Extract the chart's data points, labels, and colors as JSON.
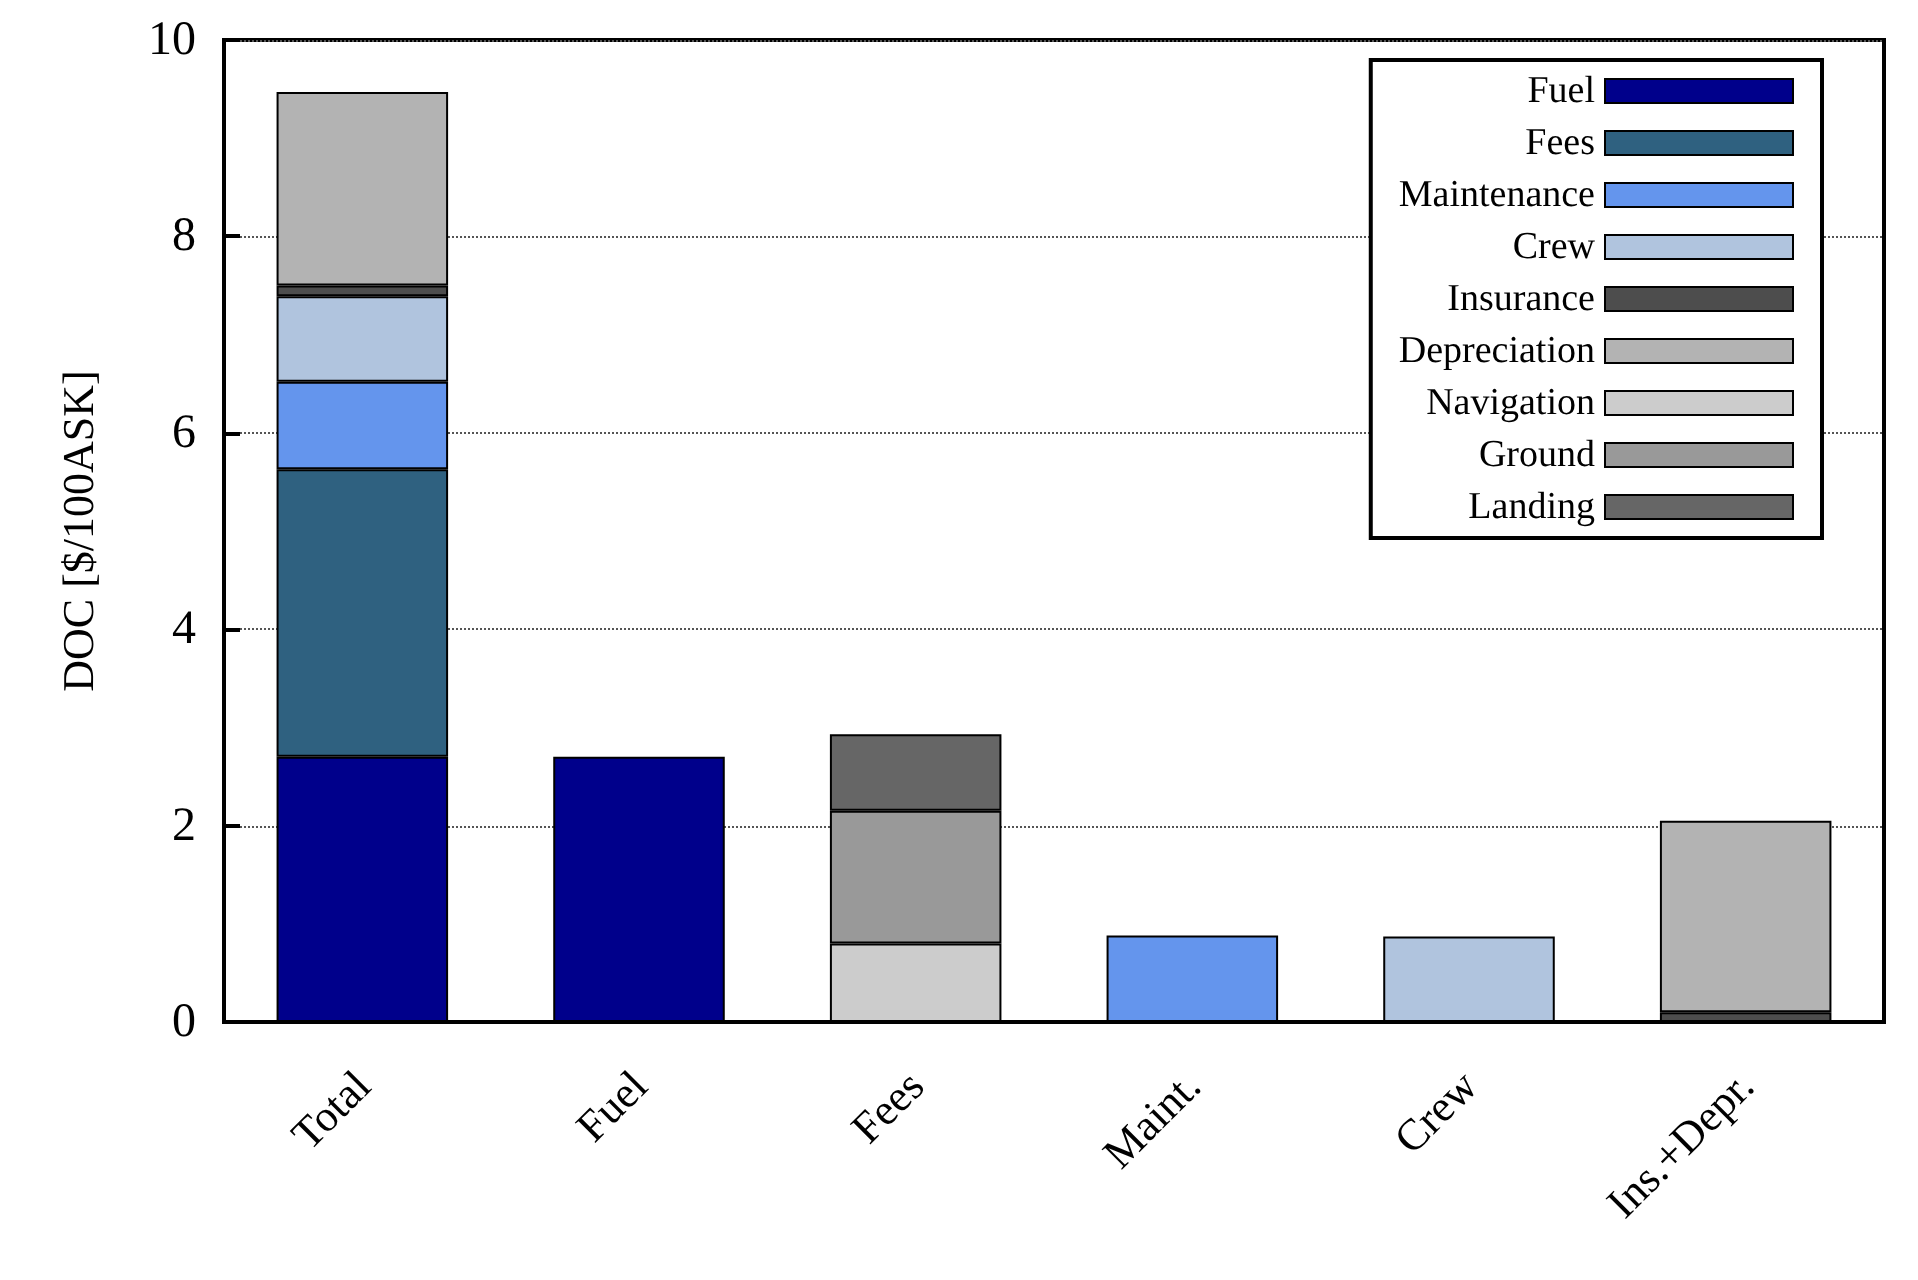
{
  "chart_data": {
    "type": "bar",
    "stacked": true,
    "ylabel": "DOC [$/100ASK]",
    "categories": [
      "Total",
      "Fuel",
      "Fees",
      "Maint.",
      "Crew",
      "Ins.+Depr."
    ],
    "series": [
      {
        "name": "Fuel",
        "color": "#00008b",
        "values": [
          2.7,
          2.7,
          null,
          null,
          null,
          null
        ]
      },
      {
        "name": "Fees",
        "color": "#2f6180",
        "values": [
          2.93,
          null,
          null,
          null,
          null,
          null
        ]
      },
      {
        "name": "Maintenance",
        "color": "#6495ed",
        "values": [
          0.89,
          null,
          null,
          0.88,
          null,
          null
        ]
      },
      {
        "name": "Crew",
        "color": "#b0c4de",
        "values": [
          0.87,
          null,
          null,
          null,
          0.87,
          null
        ]
      },
      {
        "name": "Insurance",
        "color": "#4d4d4d",
        "values": [
          0.11,
          null,
          null,
          null,
          null,
          0.1
        ]
      },
      {
        "name": "Depreciation",
        "color": "#b3b3b3",
        "values": [
          1.97,
          null,
          null,
          null,
          null,
          1.95
        ]
      },
      {
        "name": "Navigation",
        "color": "#cccccc",
        "values": [
          null,
          null,
          0.8,
          null,
          null,
          null
        ]
      },
      {
        "name": "Ground",
        "color": "#999999",
        "values": [
          null,
          null,
          1.35,
          null,
          null,
          null
        ]
      },
      {
        "name": "Landing",
        "color": "#666666",
        "values": [
          null,
          null,
          0.78,
          null,
          null,
          null
        ]
      }
    ],
    "ylim": [
      0,
      10
    ],
    "yticks": [
      0,
      2,
      4,
      6,
      8,
      10
    ],
    "grid": "y",
    "legend": "top right"
  }
}
